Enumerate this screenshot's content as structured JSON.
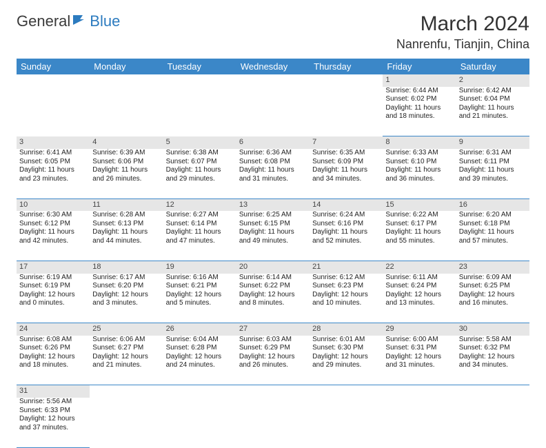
{
  "logo": {
    "text1": "General",
    "text2": "Blue"
  },
  "title": "March 2024",
  "location": "Nanrenfu, Tianjin, China",
  "weekdays": [
    "Sunday",
    "Monday",
    "Tuesday",
    "Wednesday",
    "Thursday",
    "Friday",
    "Saturday"
  ],
  "colors": {
    "header_bg": "#3b87c8",
    "daynum_bg": "#e6e6e6"
  },
  "weeks": [
    [
      null,
      null,
      null,
      null,
      null,
      {
        "n": "1",
        "sr": "Sunrise: 6:44 AM",
        "ss": "Sunset: 6:02 PM",
        "dl": "Daylight: 11 hours and 18 minutes."
      },
      {
        "n": "2",
        "sr": "Sunrise: 6:42 AM",
        "ss": "Sunset: 6:04 PM",
        "dl": "Daylight: 11 hours and 21 minutes."
      }
    ],
    [
      {
        "n": "3",
        "sr": "Sunrise: 6:41 AM",
        "ss": "Sunset: 6:05 PM",
        "dl": "Daylight: 11 hours and 23 minutes."
      },
      {
        "n": "4",
        "sr": "Sunrise: 6:39 AM",
        "ss": "Sunset: 6:06 PM",
        "dl": "Daylight: 11 hours and 26 minutes."
      },
      {
        "n": "5",
        "sr": "Sunrise: 6:38 AM",
        "ss": "Sunset: 6:07 PM",
        "dl": "Daylight: 11 hours and 29 minutes."
      },
      {
        "n": "6",
        "sr": "Sunrise: 6:36 AM",
        "ss": "Sunset: 6:08 PM",
        "dl": "Daylight: 11 hours and 31 minutes."
      },
      {
        "n": "7",
        "sr": "Sunrise: 6:35 AM",
        "ss": "Sunset: 6:09 PM",
        "dl": "Daylight: 11 hours and 34 minutes."
      },
      {
        "n": "8",
        "sr": "Sunrise: 6:33 AM",
        "ss": "Sunset: 6:10 PM",
        "dl": "Daylight: 11 hours and 36 minutes."
      },
      {
        "n": "9",
        "sr": "Sunrise: 6:31 AM",
        "ss": "Sunset: 6:11 PM",
        "dl": "Daylight: 11 hours and 39 minutes."
      }
    ],
    [
      {
        "n": "10",
        "sr": "Sunrise: 6:30 AM",
        "ss": "Sunset: 6:12 PM",
        "dl": "Daylight: 11 hours and 42 minutes."
      },
      {
        "n": "11",
        "sr": "Sunrise: 6:28 AM",
        "ss": "Sunset: 6:13 PM",
        "dl": "Daylight: 11 hours and 44 minutes."
      },
      {
        "n": "12",
        "sr": "Sunrise: 6:27 AM",
        "ss": "Sunset: 6:14 PM",
        "dl": "Daylight: 11 hours and 47 minutes."
      },
      {
        "n": "13",
        "sr": "Sunrise: 6:25 AM",
        "ss": "Sunset: 6:15 PM",
        "dl": "Daylight: 11 hours and 49 minutes."
      },
      {
        "n": "14",
        "sr": "Sunrise: 6:24 AM",
        "ss": "Sunset: 6:16 PM",
        "dl": "Daylight: 11 hours and 52 minutes."
      },
      {
        "n": "15",
        "sr": "Sunrise: 6:22 AM",
        "ss": "Sunset: 6:17 PM",
        "dl": "Daylight: 11 hours and 55 minutes."
      },
      {
        "n": "16",
        "sr": "Sunrise: 6:20 AM",
        "ss": "Sunset: 6:18 PM",
        "dl": "Daylight: 11 hours and 57 minutes."
      }
    ],
    [
      {
        "n": "17",
        "sr": "Sunrise: 6:19 AM",
        "ss": "Sunset: 6:19 PM",
        "dl": "Daylight: 12 hours and 0 minutes."
      },
      {
        "n": "18",
        "sr": "Sunrise: 6:17 AM",
        "ss": "Sunset: 6:20 PM",
        "dl": "Daylight: 12 hours and 3 minutes."
      },
      {
        "n": "19",
        "sr": "Sunrise: 6:16 AM",
        "ss": "Sunset: 6:21 PM",
        "dl": "Daylight: 12 hours and 5 minutes."
      },
      {
        "n": "20",
        "sr": "Sunrise: 6:14 AM",
        "ss": "Sunset: 6:22 PM",
        "dl": "Daylight: 12 hours and 8 minutes."
      },
      {
        "n": "21",
        "sr": "Sunrise: 6:12 AM",
        "ss": "Sunset: 6:23 PM",
        "dl": "Daylight: 12 hours and 10 minutes."
      },
      {
        "n": "22",
        "sr": "Sunrise: 6:11 AM",
        "ss": "Sunset: 6:24 PM",
        "dl": "Daylight: 12 hours and 13 minutes."
      },
      {
        "n": "23",
        "sr": "Sunrise: 6:09 AM",
        "ss": "Sunset: 6:25 PM",
        "dl": "Daylight: 12 hours and 16 minutes."
      }
    ],
    [
      {
        "n": "24",
        "sr": "Sunrise: 6:08 AM",
        "ss": "Sunset: 6:26 PM",
        "dl": "Daylight: 12 hours and 18 minutes."
      },
      {
        "n": "25",
        "sr": "Sunrise: 6:06 AM",
        "ss": "Sunset: 6:27 PM",
        "dl": "Daylight: 12 hours and 21 minutes."
      },
      {
        "n": "26",
        "sr": "Sunrise: 6:04 AM",
        "ss": "Sunset: 6:28 PM",
        "dl": "Daylight: 12 hours and 24 minutes."
      },
      {
        "n": "27",
        "sr": "Sunrise: 6:03 AM",
        "ss": "Sunset: 6:29 PM",
        "dl": "Daylight: 12 hours and 26 minutes."
      },
      {
        "n": "28",
        "sr": "Sunrise: 6:01 AM",
        "ss": "Sunset: 6:30 PM",
        "dl": "Daylight: 12 hours and 29 minutes."
      },
      {
        "n": "29",
        "sr": "Sunrise: 6:00 AM",
        "ss": "Sunset: 6:31 PM",
        "dl": "Daylight: 12 hours and 31 minutes."
      },
      {
        "n": "30",
        "sr": "Sunrise: 5:58 AM",
        "ss": "Sunset: 6:32 PM",
        "dl": "Daylight: 12 hours and 34 minutes."
      }
    ],
    [
      {
        "n": "31",
        "sr": "Sunrise: 5:56 AM",
        "ss": "Sunset: 6:33 PM",
        "dl": "Daylight: 12 hours and 37 minutes."
      },
      null,
      null,
      null,
      null,
      null,
      null
    ]
  ]
}
